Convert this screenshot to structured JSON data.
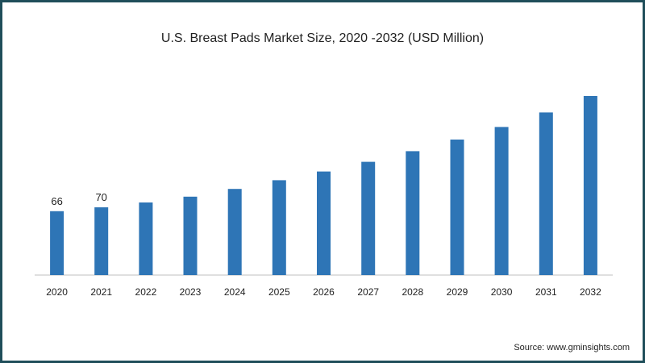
{
  "chart_data": {
    "type": "bar",
    "title": "U.S. Breast Pads Market Size, 2020 -2032 (USD Million)",
    "xlabel": "",
    "ylabel": "",
    "categories": [
      "2020",
      "2021",
      "2022",
      "2023",
      "2024",
      "2025",
      "2026",
      "2027",
      "2028",
      "2029",
      "2030",
      "2031",
      "2032"
    ],
    "values": [
      66,
      70,
      75,
      81,
      89,
      98,
      107,
      117,
      128,
      140,
      153,
      168,
      185
    ],
    "data_labels": [
      "66",
      "70",
      "",
      "",
      "",
      "",
      "",
      "",
      "",
      "",
      "",
      "",
      ""
    ],
    "ylim": [
      0,
      200
    ],
    "grid": false,
    "legend": "none",
    "bar_color": "#2e75b6"
  },
  "source": "Source: www.gminsights.com"
}
